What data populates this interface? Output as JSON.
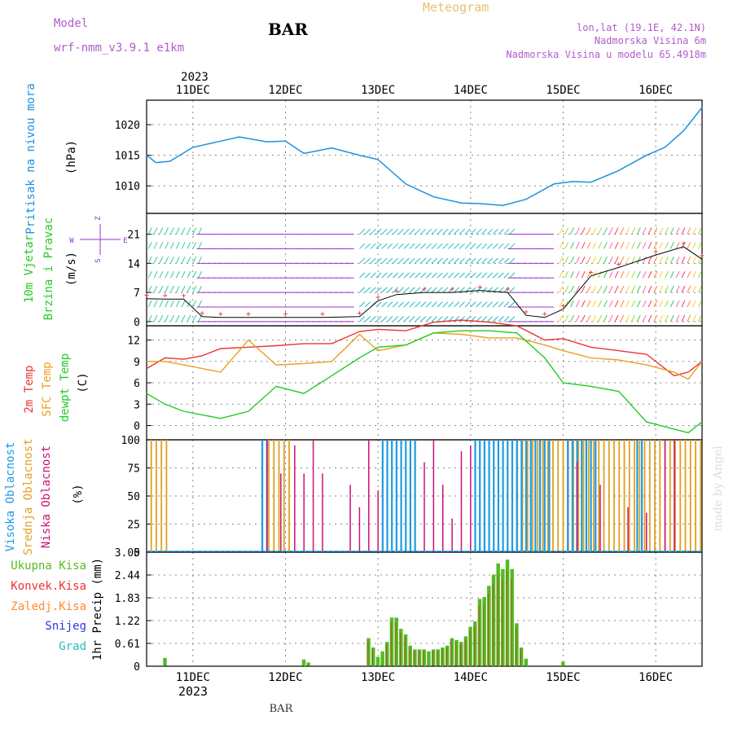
{
  "header": {
    "model_label": "Model",
    "model_name": "wrf-nmm_v3.9.1 e1km",
    "station": "BAR",
    "meteogram": "Meteogram",
    "lonlat": "lon,lat (19.1E, 42.1N)",
    "altitude": "Nadmorska Visina 6m",
    "model_altitude": "Nadmorska Visina u modelu 65.4918m",
    "bottom_station": "BAR",
    "watermark": "made by Angel"
  },
  "colors": {
    "pressure": "#1e90e0",
    "wind_label": "#22cc22",
    "wind_purple": "#9933cc",
    "temp2m": "#ee3333",
    "sfc": "#e8a020",
    "dew": "#22cc22",
    "high_cloud": "#1e9be0",
    "mid_cloud": "#e0a020",
    "low_cloud": "#cc1177",
    "precip": "#55bb22",
    "conv": "#ee3333",
    "strat": "#ff8833",
    "snow": "#3333dd",
    "grad": "#22bbbb"
  },
  "chart_data": [
    {
      "type": "line",
      "panel": "pressure",
      "ylabel": [
        "Pritisak na nivou mora",
        "(hPa)"
      ],
      "yticks": [
        1010,
        1015,
        1020
      ],
      "ylim": [
        1005.5,
        1024
      ],
      "x_days": [
        10.5,
        10.6,
        10.75,
        11.0,
        11.3,
        11.5,
        11.8,
        12.0,
        12.2,
        12.5,
        12.8,
        13.0,
        13.3,
        13.6,
        13.9,
        14.1,
        14.35,
        14.6,
        14.9,
        15.1,
        15.3,
        15.6,
        15.9,
        16.1,
        16.3,
        16.5
      ],
      "y_hpa": [
        1015,
        1013.8,
        1014,
        1016.3,
        1017.3,
        1018,
        1017.2,
        1017.3,
        1015.3,
        1016.2,
        1015,
        1014.3,
        1010.3,
        1008.2,
        1007.2,
        1007.1,
        1006.8,
        1007.8,
        1010.3,
        1010.7,
        1010.6,
        1012.5,
        1015,
        1016.3,
        1019,
        1022.8
      ]
    },
    {
      "type": "line",
      "panel": "wind",
      "ylabel": [
        "10m Vjetar",
        "Brzina i Pravac",
        "(m/s)"
      ],
      "compass": [
        "Z",
        "W",
        "E",
        "S"
      ],
      "yticks": [
        0,
        7,
        14,
        21
      ],
      "ylim": [
        -1,
        26
      ],
      "x_days": [
        10.5,
        10.7,
        10.9,
        11.1,
        11.3,
        11.6,
        12.0,
        12.4,
        12.8,
        13.0,
        13.2,
        13.5,
        13.8,
        14.1,
        14.4,
        14.6,
        14.8,
        15.0,
        15.3,
        15.6,
        16.0,
        16.3,
        16.5
      ],
      "y_ms": [
        5.5,
        5.4,
        5.4,
        1.2,
        1.0,
        1.0,
        1.0,
        1.0,
        1.2,
        5.0,
        6.5,
        7.0,
        7.0,
        7.5,
        7.0,
        1.5,
        1.0,
        3.0,
        11.0,
        13.0,
        16.0,
        18.0,
        15.0
      ]
    },
    {
      "type": "line",
      "panel": "temperature",
      "ylabel": [
        "2m Temp",
        "SFC Temp",
        "dewpt Temp",
        "(C)"
      ],
      "yticks": [
        0,
        3,
        6,
        9,
        12
      ],
      "ylim": [
        -2,
        14
      ],
      "x_days": [
        10.5,
        10.7,
        10.9,
        11.1,
        11.3,
        11.6,
        11.9,
        12.2,
        12.5,
        12.8,
        13.0,
        13.3,
        13.6,
        13.9,
        14.2,
        14.5,
        14.8,
        15.0,
        15.3,
        15.6,
        15.9,
        16.2,
        16.35,
        16.5
      ],
      "series": [
        {
          "name": "2m Temp",
          "values": [
            8.0,
            9.5,
            9.3,
            9.8,
            10.8,
            11.0,
            11.2,
            11.5,
            11.5,
            13.2,
            13.5,
            13.3,
            14.5,
            14.8,
            14.5,
            14.0,
            12.0,
            12.2,
            11.0,
            10.5,
            10.0,
            7.0,
            7.5,
            9.0
          ]
        },
        {
          "name": "SFC Temp",
          "values": [
            9.0,
            9.0,
            8.5,
            8.0,
            7.5,
            12.0,
            8.5,
            8.7,
            9.0,
            12.8,
            10.5,
            11.3,
            13.0,
            12.8,
            12.3,
            12.3,
            11.3,
            10.5,
            9.5,
            9.2,
            8.5,
            7.5,
            6.5,
            9.0
          ]
        },
        {
          "name": "dewpt Temp",
          "values": [
            4.5,
            3.0,
            2.0,
            1.5,
            1.0,
            2.0,
            5.5,
            4.5,
            7.0,
            9.5,
            11.0,
            11.3,
            13.0,
            13.3,
            13.3,
            13.0,
            9.5,
            6.0,
            5.5,
            4.8,
            0.5,
            -0.5,
            -1.0,
            0.5
          ]
        }
      ]
    },
    {
      "type": "bar",
      "panel": "clouds",
      "ylabel": [
        "Visoka Oblacnost",
        "Srednja Oblacnost",
        "Niska Oblacnost",
        "(%)"
      ],
      "yticks": [
        0,
        25,
        50,
        75,
        100
      ],
      "ylim": [
        0,
        100
      ],
      "series": [
        {
          "name": "Visoka Oblacnost",
          "segments": [
            [
              11.75,
              11.82
            ],
            [
              13.05,
              13.45
            ],
            [
              14.05,
              14.45
            ],
            [
              14.45,
              14.9
            ],
            [
              15.05,
              15.4
            ],
            [
              15.8,
              15.88
            ]
          ],
          "value": 100
        },
        {
          "name": "Srednja Oblacnost",
          "segments": [
            [
              10.55,
              10.75
            ],
            [
              11.82,
              12.05
            ],
            [
              14.45,
              15.0
            ],
            [
              15.0,
              16.5
            ]
          ],
          "value": 100
        },
        {
          "name": "Niska Oblacnost",
          "bars": [
            [
              11.8,
              100
            ],
            [
              11.95,
              70
            ],
            [
              12.1,
              95
            ],
            [
              12.2,
              70
            ],
            [
              12.3,
              100
            ],
            [
              12.4,
              70
            ],
            [
              12.7,
              60
            ],
            [
              12.8,
              40
            ],
            [
              12.9,
              100
            ],
            [
              13.0,
              55
            ],
            [
              13.5,
              80
            ],
            [
              13.6,
              100
            ],
            [
              13.7,
              60
            ],
            [
              13.8,
              30
            ],
            [
              13.9,
              90
            ],
            [
              14.0,
              95
            ],
            [
              15.15,
              80
            ],
            [
              15.4,
              60
            ],
            [
              15.7,
              40
            ],
            [
              15.9,
              35
            ],
            [
              16.1,
              100
            ],
            [
              16.2,
              100
            ]
          ]
        }
      ]
    },
    {
      "type": "bar",
      "panel": "precip",
      "ylabel": [
        "1hr Precip (mm)"
      ],
      "legend": [
        "Ukupna Kisa",
        "Konvek.Kisa",
        "Zaledj.Kisa",
        "Snijeg",
        "Grad"
      ],
      "yticks": [
        0,
        0.61,
        1.22,
        1.83,
        2.44,
        3.05
      ],
      "ylim": [
        0,
        3.05
      ],
      "bars": [
        [
          10.7,
          0.22
        ],
        [
          12.2,
          0.18
        ],
        [
          12.25,
          0.1
        ],
        [
          12.9,
          0.75
        ],
        [
          12.95,
          0.5
        ],
        [
          13.0,
          0.25
        ],
        [
          13.05,
          0.4
        ],
        [
          13.1,
          0.65
        ],
        [
          13.15,
          1.3
        ],
        [
          13.2,
          1.3
        ],
        [
          13.25,
          1.0
        ],
        [
          13.3,
          0.85
        ],
        [
          13.35,
          0.55
        ],
        [
          13.4,
          0.45
        ],
        [
          13.45,
          0.45
        ],
        [
          13.5,
          0.45
        ],
        [
          13.55,
          0.4
        ],
        [
          13.6,
          0.45
        ],
        [
          13.65,
          0.45
        ],
        [
          13.7,
          0.5
        ],
        [
          13.75,
          0.55
        ],
        [
          13.8,
          0.75
        ],
        [
          13.85,
          0.7
        ],
        [
          13.9,
          0.65
        ],
        [
          13.95,
          0.8
        ],
        [
          14.0,
          1.05
        ],
        [
          14.05,
          1.2
        ],
        [
          14.1,
          1.8
        ],
        [
          14.15,
          1.85
        ],
        [
          14.2,
          2.15
        ],
        [
          14.25,
          2.45
        ],
        [
          14.3,
          2.75
        ],
        [
          14.35,
          2.6
        ],
        [
          14.4,
          2.85
        ],
        [
          14.45,
          2.6
        ],
        [
          14.5,
          1.15
        ],
        [
          14.55,
          0.5
        ],
        [
          14.6,
          0.2
        ],
        [
          15.0,
          0.12
        ]
      ]
    }
  ],
  "xaxis": {
    "year": "2023",
    "days": [
      11,
      12,
      13,
      14,
      15,
      16
    ],
    "labels": [
      "11DEC",
      "12DEC",
      "13DEC",
      "14DEC",
      "15DEC",
      "16DEC"
    ],
    "range": [
      10.5,
      16.5
    ]
  }
}
